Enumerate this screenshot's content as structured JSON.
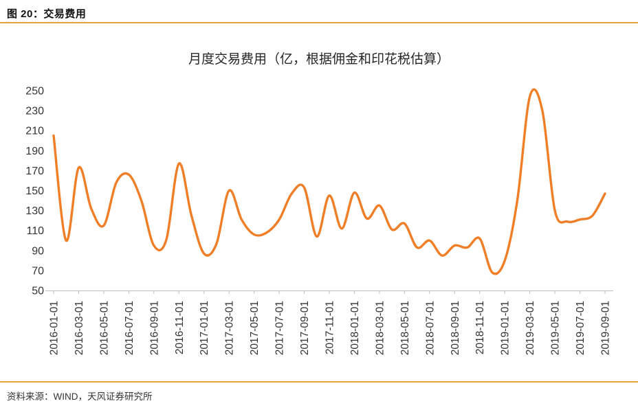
{
  "figure": {
    "caption": "图 20：交易费用"
  },
  "footer": {
    "source": "资料来源：WIND，天风证券研究所"
  },
  "colors": {
    "accent_rule": "#E8A33D",
    "line": "#F07E26",
    "axis": "#BFBFBF",
    "text": "#333333",
    "title_text": "#262626"
  },
  "chart_data": {
    "type": "line",
    "title": "月度交易费用（亿，根据佣金和印花税估算）",
    "xlabel": "",
    "ylabel": "",
    "ylim": [
      50,
      250
    ],
    "y_ticks": [
      50,
      70,
      90,
      110,
      130,
      150,
      170,
      190,
      210,
      230,
      250
    ],
    "x_tick_every": 2,
    "grid": false,
    "legend": "none",
    "x": [
      "2016-01-01",
      "2016-02-01",
      "2016-03-01",
      "2016-04-01",
      "2016-05-01",
      "2016-06-01",
      "2016-07-01",
      "2016-08-01",
      "2016-09-01",
      "2016-10-01",
      "2016-11-01",
      "2016-12-01",
      "2017-01-01",
      "2017-02-01",
      "2017-03-01",
      "2017-04-01",
      "2017-05-01",
      "2017-06-01",
      "2017-07-01",
      "2017-08-01",
      "2017-09-01",
      "2017-10-01",
      "2017-11-01",
      "2017-12-01",
      "2018-01-01",
      "2018-02-01",
      "2018-03-01",
      "2018-04-01",
      "2018-05-01",
      "2018-06-01",
      "2018-07-01",
      "2018-08-01",
      "2018-09-01",
      "2018-10-01",
      "2018-11-01",
      "2018-12-01",
      "2019-01-01",
      "2019-02-01",
      "2019-03-01",
      "2019-04-01",
      "2019-05-01",
      "2019-06-01",
      "2019-07-01",
      "2019-08-01",
      "2019-09-01"
    ],
    "series": [
      {
        "name": "月度交易费用",
        "values": [
          205,
          100,
          173,
          132,
          115,
          158,
          166,
          140,
          95,
          101,
          177,
          125,
          87,
          97,
          150,
          121,
          106,
          108,
          121,
          147,
          153,
          104,
          145,
          112,
          148,
          122,
          135,
          111,
          117,
          93,
          100,
          85,
          95,
          93,
          102,
          68,
          80,
          140,
          244,
          230,
          130,
          119,
          121,
          125,
          147
        ]
      }
    ]
  }
}
